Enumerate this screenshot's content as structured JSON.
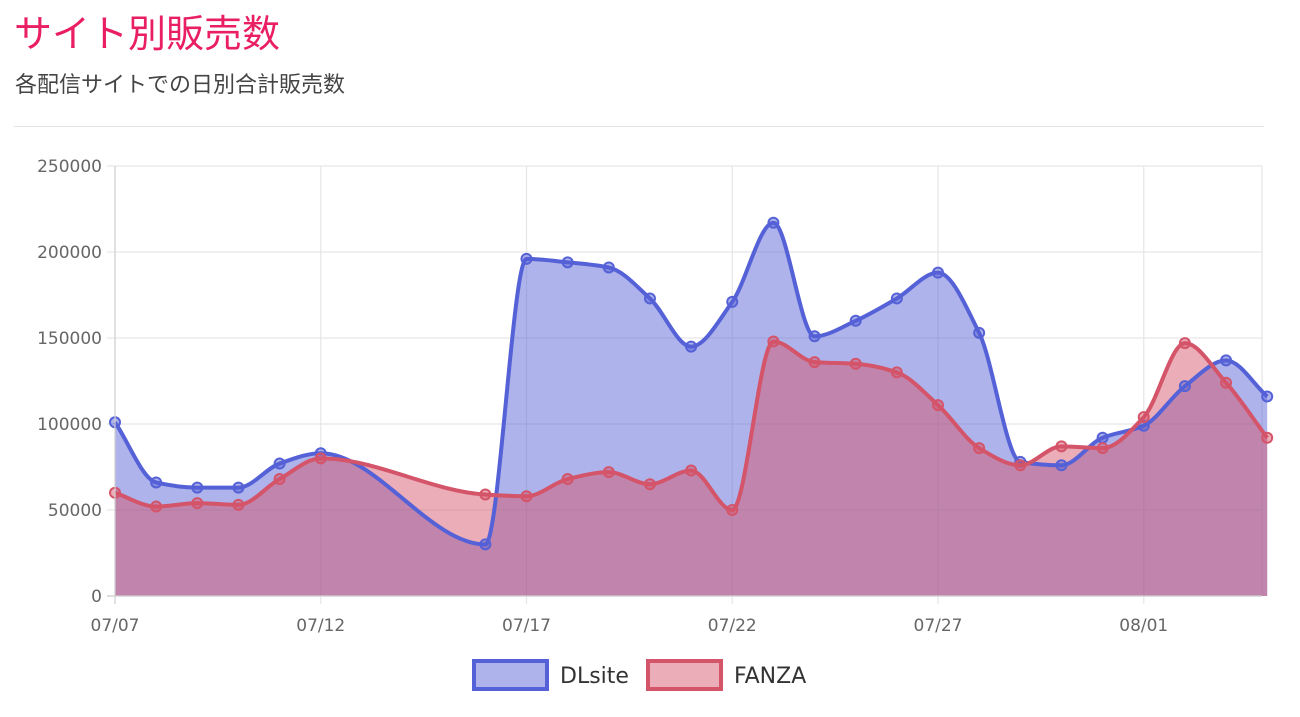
{
  "header": {
    "title": "サイト別販売数",
    "subtitle": "各配信サイトでの日別合計販売数"
  },
  "colors": {
    "title": "#e91e63",
    "dlsite_line": "#5561d6",
    "dlsite_fill": "rgba(85,97,214,0.48)",
    "fanza_line": "#d45469",
    "fanza_fill": "rgba(214,84,104,0.48)",
    "grid": "#e6e6e6"
  },
  "chart_data": {
    "type": "area",
    "x_labels": [
      "07/07",
      "07/12",
      "07/17",
      "07/22",
      "07/27",
      "08/01"
    ],
    "y_ticks": [
      "0",
      "50000",
      "100000",
      "150000",
      "200000",
      "250000"
    ],
    "ylim": [
      0,
      250000
    ],
    "grid": true,
    "legend_position": "bottom",
    "series": [
      {
        "name": "DLsite",
        "points": [
          [
            "07/07",
            101000
          ],
          [
            "07/08",
            66000
          ],
          [
            "07/09",
            63000
          ],
          [
            "07/10",
            63000
          ],
          [
            "07/11",
            77000
          ],
          [
            "07/12",
            83000
          ],
          [
            "07/16",
            30000
          ],
          [
            "07/17",
            196000
          ],
          [
            "07/18",
            194000
          ],
          [
            "07/19",
            191000
          ],
          [
            "07/20",
            173000
          ],
          [
            "07/21",
            145000
          ],
          [
            "07/22",
            171000
          ],
          [
            "07/23",
            217000
          ],
          [
            "07/24",
            151000
          ],
          [
            "07/25",
            160000
          ],
          [
            "07/26",
            173000
          ],
          [
            "07/27",
            188000
          ],
          [
            "07/28",
            153000
          ],
          [
            "07/29",
            78000
          ],
          [
            "07/30",
            76000
          ],
          [
            "07/31",
            92000
          ],
          [
            "08/01",
            99000
          ],
          [
            "08/02",
            122000
          ],
          [
            "08/03",
            137000
          ],
          [
            "08/04",
            116000
          ]
        ]
      },
      {
        "name": "FANZA",
        "points": [
          [
            "07/07",
            60000
          ],
          [
            "07/08",
            52000
          ],
          [
            "07/09",
            54000
          ],
          [
            "07/10",
            53000
          ],
          [
            "07/11",
            68000
          ],
          [
            "07/12",
            80000
          ],
          [
            "07/16",
            59000
          ],
          [
            "07/17",
            58000
          ],
          [
            "07/18",
            68000
          ],
          [
            "07/19",
            72000
          ],
          [
            "07/20",
            65000
          ],
          [
            "07/21",
            73000
          ],
          [
            "07/22",
            50000
          ],
          [
            "07/23",
            148000
          ],
          [
            "07/24",
            136000
          ],
          [
            "07/25",
            135000
          ],
          [
            "07/26",
            130000
          ],
          [
            "07/27",
            111000
          ],
          [
            "07/28",
            86000
          ],
          [
            "07/29",
            76000
          ],
          [
            "07/30",
            87000
          ],
          [
            "07/31",
            86000
          ],
          [
            "08/01",
            104000
          ],
          [
            "08/02",
            147000
          ],
          [
            "08/03",
            124000
          ],
          [
            "08/04",
            92000
          ]
        ]
      }
    ]
  }
}
